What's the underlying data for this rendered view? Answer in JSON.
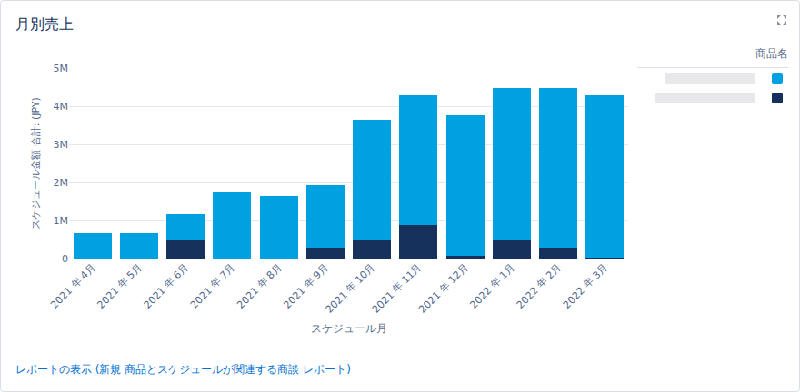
{
  "chart_data": {
    "type": "bar",
    "title": "月別売上",
    "x_label": "スケジュール月",
    "y_label": "スケジュール金額 合計: (JPY)",
    "legend_title": "商品名",
    "footer": "レポートの表示 (新規 商品とスケジュールが関連する商談 レポート)",
    "stacked": true,
    "grid": true,
    "legend": "right",
    "categories": [
      "2021 年 4月",
      "2021 年 5月",
      "2021 年 6月",
      "2021 年 7月",
      "2021 年 8月",
      "2021 年 9月",
      "2021 年 10月",
      "2021 年 11月",
      "2021 年 12月",
      "2022 年 1月",
      "2022 年 2月",
      "2022 年 3月"
    ],
    "series": [
      {
        "color": "#16325c",
        "values": [
          0,
          0,
          480000,
          0,
          0,
          290000,
          480000,
          890000,
          70000,
          480000,
          290000,
          20000
        ]
      },
      {
        "color": "#00a1e0",
        "values": [
          670000,
          670000,
          690000,
          1750000,
          1650000,
          1650000,
          3160000,
          3390000,
          3690000,
          3990000,
          4180000,
          4260000
        ]
      }
    ],
    "ylim": [
      0,
      5000000
    ],
    "yticks": [
      0,
      {
        "value": 1000000,
        "label": "1M"
      },
      {
        "value": 2000000,
        "label": "2M"
      },
      {
        "value": 3000000,
        "label": "3M"
      },
      {
        "value": 4000000,
        "label": "4M"
      },
      {
        "value": 5000000,
        "label": "5M"
      }
    ]
  }
}
